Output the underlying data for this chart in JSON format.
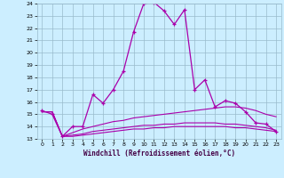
{
  "x": [
    0,
    1,
    2,
    3,
    4,
    5,
    6,
    7,
    8,
    9,
    10,
    11,
    12,
    13,
    14,
    15,
    16,
    17,
    18,
    19,
    20,
    21,
    22,
    23
  ],
  "line1": [
    15.3,
    15.0,
    13.2,
    14.0,
    14.0,
    16.6,
    15.9,
    17.0,
    18.5,
    21.7,
    24.0,
    24.1,
    23.4,
    22.3,
    23.5,
    17.0,
    17.8,
    15.6,
    16.1,
    15.9,
    15.2,
    14.3,
    14.2,
    13.6
  ],
  "line2": [
    15.2,
    15.2,
    13.2,
    13.5,
    13.8,
    14.0,
    14.2,
    14.4,
    14.5,
    14.7,
    14.8,
    14.9,
    15.0,
    15.1,
    15.2,
    15.3,
    15.4,
    15.5,
    15.6,
    15.6,
    15.5,
    15.3,
    15.0,
    14.8
  ],
  "line3": [
    15.2,
    15.2,
    13.2,
    13.3,
    13.4,
    13.6,
    13.7,
    13.8,
    13.9,
    14.0,
    14.1,
    14.1,
    14.2,
    14.2,
    14.3,
    14.3,
    14.3,
    14.3,
    14.2,
    14.2,
    14.1,
    14.0,
    13.9,
    13.7
  ],
  "line4": [
    15.2,
    15.2,
    13.2,
    13.2,
    13.3,
    13.4,
    13.5,
    13.6,
    13.7,
    13.8,
    13.8,
    13.9,
    13.9,
    14.0,
    14.0,
    14.0,
    14.0,
    14.0,
    14.0,
    13.9,
    13.9,
    13.8,
    13.7,
    13.6
  ],
  "line_color": "#aa00aa",
  "bg_color": "#cceeff",
  "grid_color": "#99bbcc",
  "xlabel": "Windchill (Refroidissement éolien,°C)",
  "ylim": [
    13,
    24
  ],
  "xlim": [
    -0.5,
    23.5
  ],
  "yticks": [
    13,
    14,
    15,
    16,
    17,
    18,
    19,
    20,
    21,
    22,
    23,
    24
  ],
  "xticks": [
    0,
    1,
    2,
    3,
    4,
    5,
    6,
    7,
    8,
    9,
    10,
    11,
    12,
    13,
    14,
    15,
    16,
    17,
    18,
    19,
    20,
    21,
    22,
    23
  ]
}
